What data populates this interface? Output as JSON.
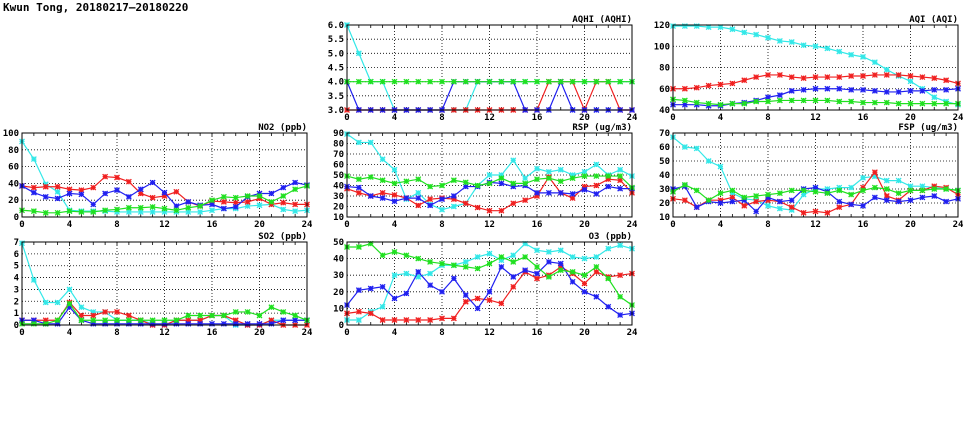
{
  "header": {
    "title": "Kwun Tong, 20180217–20180220"
  },
  "series_colors": {
    "cyan": "#33e8e8",
    "red": "#f02020",
    "blue": "#2020f0",
    "green": "#20e020"
  },
  "chart_data": [
    {
      "type": "line",
      "title": "AQHI (AQHI)",
      "xlim": [
        0,
        24
      ],
      "xticks": [
        0,
        4,
        8,
        12,
        16,
        20,
        24
      ],
      "ylim": [
        3,
        6
      ],
      "yticks": [
        "3.0",
        "3.5",
        "4.0",
        "4.5",
        "5.0",
        "5.5",
        "6.0"
      ],
      "grid": true,
      "series": [
        {
          "name": "cyan",
          "values": [
            6,
            5,
            4,
            4,
            3,
            3,
            3,
            3,
            3,
            3,
            3,
            4,
            4,
            4,
            4,
            4,
            4,
            4,
            4,
            4,
            4,
            4,
            4,
            4,
            4
          ]
        },
        {
          "name": "red",
          "values": [
            3,
            3,
            3,
            3,
            3,
            3,
            3,
            3,
            3,
            3,
            3,
            3,
            3,
            3,
            3,
            3,
            3,
            4,
            4,
            4,
            3,
            4,
            4,
            3,
            3
          ]
        },
        {
          "name": "blue",
          "values": [
            4,
            3,
            3,
            3,
            3,
            3,
            3,
            3,
            3,
            4,
            4,
            4,
            4,
            4,
            4,
            3,
            3,
            3,
            4,
            3,
            3,
            3,
            3,
            3,
            3
          ]
        },
        {
          "name": "green",
          "values": [
            4,
            4,
            4,
            4,
            4,
            4,
            4,
            4,
            4,
            4,
            4,
            4,
            4,
            4,
            4,
            4,
            4,
            4,
            4,
            4,
            4,
            4,
            4,
            4,
            4
          ]
        }
      ]
    },
    {
      "type": "line",
      "title": "AQI (AQI)",
      "xlim": [
        0,
        24
      ],
      "xticks": [
        0,
        4,
        8,
        12,
        16,
        20,
        24
      ],
      "ylim": [
        40,
        120
      ],
      "yticks": [
        "40",
        "60",
        "80",
        "100",
        "120"
      ],
      "grid": true,
      "series": [
        {
          "name": "cyan",
          "values": [
            119,
            119,
            119,
            118,
            118,
            116,
            113,
            111,
            108,
            105,
            104,
            101,
            100,
            98,
            95,
            92,
            90,
            85,
            78,
            72,
            67,
            60,
            52,
            48,
            45
          ]
        },
        {
          "name": "red",
          "values": [
            60,
            60,
            61,
            63,
            64,
            65,
            68,
            71,
            73,
            73,
            71,
            70,
            71,
            71,
            71,
            72,
            72,
            73,
            73,
            73,
            72,
            71,
            70,
            68,
            65
          ]
        },
        {
          "name": "blue",
          "values": [
            45,
            45,
            45,
            44,
            44,
            46,
            47,
            49,
            52,
            54,
            58,
            59,
            60,
            60,
            60,
            59,
            59,
            58,
            57,
            57,
            58,
            58,
            59,
            59,
            60
          ]
        },
        {
          "name": "green",
          "values": [
            50,
            49,
            47,
            46,
            45,
            46,
            46,
            48,
            48,
            49,
            49,
            49,
            49,
            49,
            48,
            48,
            47,
            47,
            47,
            46,
            46,
            46,
            46,
            46,
            46
          ]
        }
      ]
    },
    {
      "type": "line",
      "title": "NO2 (ppb)",
      "xlim": [
        0,
        24
      ],
      "xticks": [
        0,
        4,
        8,
        12,
        16,
        20,
        24
      ],
      "ylim": [
        0,
        100
      ],
      "yticks": [
        "0",
        "20",
        "40",
        "60",
        "80",
        "100"
      ],
      "grid": true,
      "series": [
        {
          "name": "cyan",
          "values": [
            90,
            69,
            39,
            30,
            8,
            7,
            7,
            7,
            6,
            6,
            6,
            6,
            6,
            6,
            6,
            6,
            8,
            10,
            10,
            13,
            14,
            15,
            9,
            7,
            8
          ]
        },
        {
          "name": "red",
          "values": [
            37,
            35,
            36,
            36,
            33,
            32,
            35,
            48,
            47,
            42,
            28,
            23,
            25,
            30,
            18,
            13,
            19,
            18,
            17,
            18,
            22,
            15,
            17,
            15,
            15
          ]
        },
        {
          "name": "blue",
          "values": [
            37,
            29,
            24,
            22,
            28,
            27,
            15,
            28,
            32,
            24,
            33,
            41,
            29,
            13,
            18,
            14,
            15,
            10,
            12,
            24,
            28,
            28,
            35,
            41,
            38
          ]
        },
        {
          "name": "green",
          "values": [
            8,
            7,
            5,
            5,
            7,
            6,
            6,
            8,
            9,
            11,
            11,
            12,
            10,
            8,
            11,
            13,
            20,
            24,
            23,
            25,
            25,
            18,
            25,
            33,
            37
          ]
        }
      ]
    },
    {
      "type": "line",
      "title": "RSP (ug/m3)",
      "xlim": [
        0,
        24
      ],
      "xticks": [
        0,
        4,
        8,
        12,
        16,
        20,
        24
      ],
      "ylim": [
        10,
        90
      ],
      "yticks": [
        "10",
        "20",
        "30",
        "40",
        "50",
        "60",
        "70",
        "80",
        "90"
      ],
      "grid": true,
      "series": [
        {
          "name": "cyan",
          "values": [
            89,
            81,
            81,
            65,
            55,
            27,
            33,
            22,
            17,
            20,
            23,
            40,
            50,
            50,
            64,
            47,
            56,
            53,
            55,
            50,
            53,
            60,
            50,
            55,
            49
          ]
        },
        {
          "name": "red",
          "values": [
            37,
            33,
            30,
            33,
            31,
            28,
            21,
            27,
            28,
            27,
            23,
            19,
            16,
            16,
            23,
            26,
            30,
            48,
            33,
            28,
            39,
            40,
            46,
            45,
            33
          ]
        },
        {
          "name": "blue",
          "values": [
            39,
            38,
            30,
            28,
            25,
            28,
            28,
            21,
            27,
            30,
            39,
            39,
            43,
            42,
            39,
            40,
            33,
            33,
            33,
            32,
            36,
            32,
            39,
            37,
            37
          ]
        },
        {
          "name": "green",
          "values": [
            49,
            46,
            48,
            45,
            42,
            44,
            46,
            39,
            40,
            45,
            43,
            40,
            42,
            47,
            42,
            42,
            46,
            47,
            44,
            47,
            49,
            49,
            49,
            49,
            38
          ]
        }
      ]
    },
    {
      "type": "line",
      "title": "FSP (ug/m3)",
      "xlim": [
        0,
        24
      ],
      "xticks": [
        0,
        4,
        8,
        12,
        16,
        20,
        24
      ],
      "ylim": [
        10,
        70
      ],
      "yticks": [
        "10",
        "20",
        "30",
        "40",
        "50",
        "60",
        "70"
      ],
      "grid": true,
      "series": [
        {
          "name": "cyan",
          "values": [
            67,
            60,
            59,
            50,
            46,
            27,
            23,
            22,
            18,
            16,
            15,
            26,
            30,
            30,
            31,
            31,
            38,
            39,
            36,
            36,
            32,
            32,
            31,
            30,
            29
          ]
        },
        {
          "name": "red",
          "values": [
            23,
            22,
            17,
            22,
            22,
            24,
            18,
            21,
            22,
            21,
            17,
            13,
            14,
            13,
            17,
            19,
            31,
            42,
            25,
            22,
            29,
            29,
            32,
            31,
            26
          ]
        },
        {
          "name": "blue",
          "values": [
            30,
            32,
            17,
            21,
            20,
            21,
            22,
            14,
            24,
            21,
            22,
            30,
            31,
            28,
            21,
            19,
            18,
            24,
            22,
            21,
            22,
            24,
            25,
            21,
            23
          ]
        },
        {
          "name": "green",
          "values": [
            28,
            33,
            29,
            22,
            27,
            29,
            24,
            25,
            26,
            27,
            29,
            29,
            28,
            27,
            29,
            26,
            29,
            31,
            30,
            27,
            29,
            29,
            30,
            30,
            29
          ]
        }
      ]
    },
    {
      "type": "line",
      "title": "SO2 (ppb)",
      "xlim": [
        0,
        24
      ],
      "xticks": [
        0,
        4,
        8,
        12,
        16,
        20,
        24
      ],
      "ylim": [
        0,
        7
      ],
      "yticks": [
        "0",
        "1",
        "2",
        "3",
        "4",
        "5",
        "6",
        "7"
      ],
      "grid": true,
      "series": [
        {
          "name": "cyan",
          "values": [
            6.9,
            3.8,
            1.9,
            1.9,
            3.0,
            1.5,
            1.1,
            1.1,
            0.4,
            0.4,
            0.4,
            0.1,
            0.0,
            0.4,
            0.4,
            0.4,
            0.8,
            0.8,
            0.0,
            0.0,
            0.0,
            0.4,
            0.4,
            0.4,
            0.4
          ]
        },
        {
          "name": "red",
          "values": [
            0.4,
            0.4,
            0.4,
            0.4,
            1.9,
            0.8,
            0.8,
            1.1,
            1.1,
            0.8,
            0.4,
            0.0,
            0.0,
            0.4,
            0.4,
            0.4,
            0.8,
            0.8,
            0.4,
            0.0,
            0.0,
            0.4,
            0.0,
            0.0,
            0.0
          ]
        },
        {
          "name": "blue",
          "values": [
            0.4,
            0.4,
            0.1,
            0.1,
            1.5,
            0.4,
            0.1,
            0.1,
            0.1,
            0.1,
            0.1,
            0.1,
            0.1,
            0.1,
            0.1,
            0.1,
            0.1,
            0.1,
            0.1,
            0.1,
            0.1,
            0.1,
            0.4,
            0.4,
            0.4
          ]
        },
        {
          "name": "green",
          "values": [
            0.1,
            0.1,
            0.1,
            0.4,
            1.8,
            0.4,
            0.4,
            0.4,
            0.4,
            0.4,
            0.4,
            0.4,
            0.4,
            0.4,
            0.8,
            0.8,
            0.8,
            0.8,
            1.1,
            1.1,
            0.8,
            1.5,
            1.1,
            0.8,
            0.4
          ]
        }
      ]
    },
    {
      "type": "line",
      "title": "O3 (ppb)",
      "xlim": [
        0,
        24
      ],
      "xticks": [
        0,
        4,
        8,
        12,
        16,
        20,
        24
      ],
      "ylim": [
        0,
        50
      ],
      "yticks": [
        "0",
        "10",
        "20",
        "30",
        "40",
        "50"
      ],
      "grid": true,
      "series": [
        {
          "name": "cyan",
          "values": [
            3,
            3,
            8,
            11,
            30,
            31,
            29,
            31,
            36,
            36,
            38,
            41,
            43,
            39,
            42,
            49,
            45,
            44,
            45,
            41,
            40,
            41,
            46,
            48,
            46
          ]
        },
        {
          "name": "red",
          "values": [
            7,
            8,
            7,
            3,
            3,
            3,
            3,
            3,
            4,
            4,
            14,
            16,
            15,
            13,
            23,
            32,
            28,
            30,
            35,
            31,
            25,
            32,
            29,
            30,
            31
          ]
        },
        {
          "name": "blue",
          "values": [
            12,
            21,
            22,
            23,
            16,
            19,
            32,
            24,
            20,
            28,
            18,
            10,
            20,
            35,
            29,
            33,
            31,
            38,
            37,
            26,
            20,
            17,
            11,
            6,
            7
          ]
        },
        {
          "name": "green",
          "values": [
            47,
            47,
            49,
            42,
            44,
            42,
            40,
            38,
            37,
            36,
            35,
            34,
            37,
            41,
            38,
            41,
            35,
            29,
            33,
            32,
            30,
            35,
            28,
            17,
            12
          ]
        }
      ]
    }
  ]
}
